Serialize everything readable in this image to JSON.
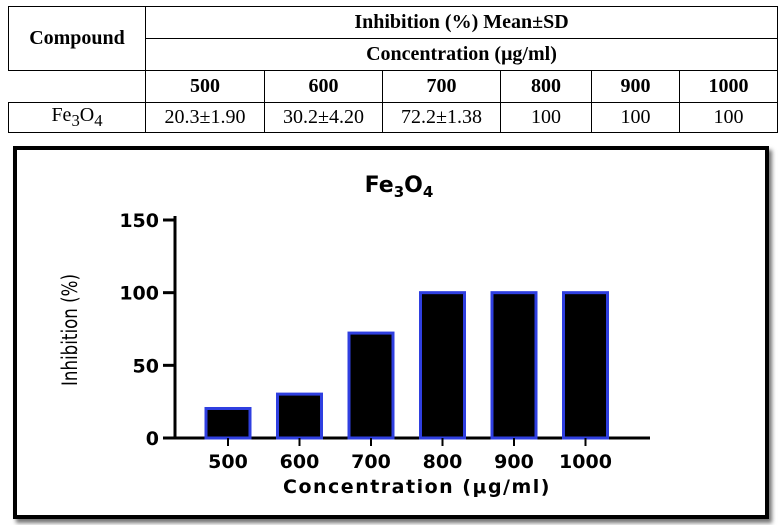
{
  "table": {
    "compound_header": "Compound",
    "inhibition_header": "Inhibition (%) Mean±SD",
    "concentration_header": "Concentration (μg/ml)",
    "concentrations": [
      "500",
      "600",
      "700",
      "800",
      "900",
      "1000"
    ],
    "rows": [
      {
        "compound": {
          "base1": "Fe",
          "sub1": "3",
          "base2": "O",
          "sub2": "4"
        },
        "values": [
          "20.3±1.90",
          "30.2±4.20",
          "72.2±1.38",
          "100",
          "100",
          "100"
        ]
      }
    ]
  },
  "chart_data": {
    "type": "bar",
    "title": {
      "base1": "Fe",
      "sub1": "3",
      "base2": "O",
      "sub2": "4"
    },
    "categories": [
      "500",
      "600",
      "700",
      "800",
      "900",
      "1000"
    ],
    "values": [
      20.3,
      30.2,
      72.2,
      100,
      100,
      100
    ],
    "xlabel": "Concentration (μg/ml)",
    "ylabel": "Inhibition (%)",
    "ylim": [
      0,
      150
    ],
    "yticks": [
      0,
      50,
      100,
      150
    ],
    "bar_fill": "#000000",
    "bar_edge": "#2f3fe0",
    "grid": false,
    "legend": "none"
  }
}
